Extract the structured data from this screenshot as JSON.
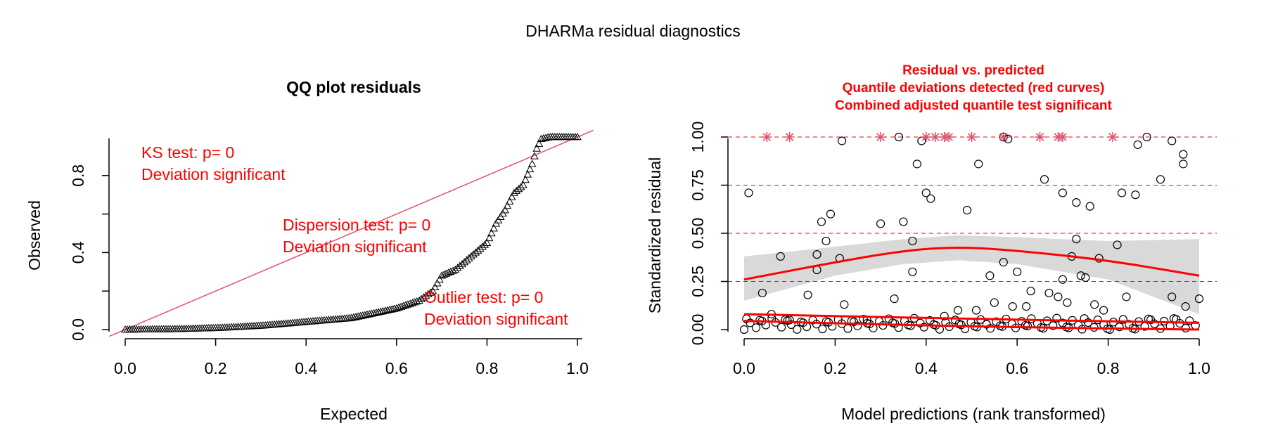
{
  "page": {
    "title": "DHARMa residual diagnostics"
  },
  "colors": {
    "red": "#ff0000",
    "qq_line": "#df536b",
    "outlier_star": "#df536b",
    "dashed": "#ff0000",
    "band": "#d9d9d9",
    "points": "#000000"
  },
  "qq": {
    "annotations": {
      "ks_line1": "KS test: p= 0",
      "ks_line2": "Deviation  significant",
      "disp_line1": "Dispersion test: p= 0",
      "disp_line2": "Deviation  significant",
      "out_line1": "Outlier test: p= 0",
      "out_line2": "Deviation  significant"
    }
  },
  "rvp": {
    "title_lines": [
      "Residual vs. predicted",
      "Quantile deviations detected (red curves)",
      "Combined adjusted quantile test significant"
    ]
  },
  "chart_data": [
    {
      "type": "scatter",
      "title": "QQ plot residuals",
      "xlabel": "Expected",
      "ylabel": "Observed",
      "xlim": [
        0,
        1
      ],
      "ylim": [
        0,
        1
      ],
      "xticks": [
        "0.0",
        "0.2",
        "0.4",
        "0.6",
        "0.8",
        "1.0"
      ],
      "yticks": [
        "0.0",
        "0.4",
        "0.8"
      ],
      "reference_line": {
        "intercept": 0,
        "slope": 1
      },
      "quantile_curve": [
        [
          0.0,
          0.0
        ],
        [
          0.1,
          0.002
        ],
        [
          0.2,
          0.008
        ],
        [
          0.3,
          0.02
        ],
        [
          0.4,
          0.04
        ],
        [
          0.5,
          0.06
        ],
        [
          0.55,
          0.085
        ],
        [
          0.6,
          0.11
        ],
        [
          0.65,
          0.15
        ],
        [
          0.68,
          0.2
        ],
        [
          0.7,
          0.28
        ],
        [
          0.73,
          0.31
        ],
        [
          0.76,
          0.37
        ],
        [
          0.8,
          0.45
        ],
        [
          0.82,
          0.55
        ],
        [
          0.84,
          0.62
        ],
        [
          0.86,
          0.71
        ],
        [
          0.88,
          0.75
        ],
        [
          0.9,
          0.86
        ],
        [
          0.91,
          0.94
        ],
        [
          0.92,
          0.99
        ],
        [
          0.94,
          1.0
        ],
        [
          1.0,
          1.0
        ]
      ]
    },
    {
      "type": "scatter",
      "title": "Residual vs. predicted",
      "xlabel": "Model predictions (rank transformed)",
      "ylabel": "Standardized residual",
      "xlim": [
        0,
        1
      ],
      "ylim": [
        0,
        1
      ],
      "xticks": [
        "0.0",
        "0.2",
        "0.4",
        "0.6",
        "0.8",
        "1.0"
      ],
      "yticks": [
        "0.00",
        "0.25",
        "0.50",
        "0.75",
        "1.00"
      ],
      "reference_quantiles": [
        0.25,
        0.5,
        0.75
      ],
      "outliers_x": [
        0.05,
        0.1,
        0.3,
        0.4,
        0.42,
        0.44,
        0.45,
        0.5,
        0.57,
        0.65,
        0.69,
        0.7,
        0.81
      ],
      "points": [
        [
          0.01,
          0.71
        ],
        [
          0.215,
          0.98
        ],
        [
          0.34,
          1.0
        ],
        [
          0.38,
          0.86
        ],
        [
          0.39,
          0.98
        ],
        [
          0.515,
          0.86
        ],
        [
          0.57,
          1.0
        ],
        [
          0.58,
          0.99
        ],
        [
          0.865,
          0.96
        ],
        [
          0.885,
          1.0
        ],
        [
          0.94,
          0.98
        ],
        [
          0.965,
          0.91
        ],
        [
          0.965,
          0.86
        ],
        [
          0.915,
          0.78
        ],
        [
          0.66,
          0.78
        ],
        [
          0.4,
          0.71
        ],
        [
          0.41,
          0.68
        ],
        [
          0.7,
          0.71
        ],
        [
          0.73,
          0.66
        ],
        [
          0.76,
          0.64
        ],
        [
          0.83,
          0.71
        ],
        [
          0.86,
          0.7
        ],
        [
          0.19,
          0.6
        ],
        [
          0.17,
          0.56
        ],
        [
          0.3,
          0.55
        ],
        [
          0.35,
          0.56
        ],
        [
          0.49,
          0.62
        ],
        [
          0.18,
          0.46
        ],
        [
          0.37,
          0.46
        ],
        [
          0.08,
          0.38
        ],
        [
          0.16,
          0.39
        ],
        [
          0.21,
          0.37
        ],
        [
          0.57,
          0.35
        ],
        [
          0.73,
          0.47
        ],
        [
          0.82,
          0.44
        ],
        [
          0.72,
          0.38
        ],
        [
          0.78,
          0.37
        ],
        [
          0.16,
          0.31
        ],
        [
          0.37,
          0.3
        ],
        [
          0.54,
          0.28
        ],
        [
          0.6,
          0.3
        ],
        [
          0.7,
          0.26
        ],
        [
          0.74,
          0.28
        ],
        [
          0.75,
          0.27
        ],
        [
          0.04,
          0.19
        ],
        [
          0.14,
          0.18
        ],
        [
          0.22,
          0.13
        ],
        [
          0.33,
          0.16
        ],
        [
          0.63,
          0.2
        ],
        [
          0.67,
          0.19
        ],
        [
          0.69,
          0.17
        ],
        [
          0.71,
          0.14
        ],
        [
          0.77,
          0.13
        ],
        [
          0.79,
          0.1
        ],
        [
          0.84,
          0.17
        ],
        [
          0.94,
          0.17
        ],
        [
          0.97,
          0.12
        ],
        [
          1.0,
          0.16
        ],
        [
          0.06,
          0.08
        ],
        [
          0.1,
          0.05
        ],
        [
          0.27,
          0.05
        ],
        [
          0.44,
          0.07
        ],
        [
          0.47,
          0.1
        ],
        [
          0.51,
          0.1
        ],
        [
          0.55,
          0.14
        ],
        [
          0.59,
          0.12
        ],
        [
          0.62,
          0.12
        ]
      ],
      "quantile_curves": [
        {
          "q": 0.5,
          "points": [
            [
              0,
              0.26
            ],
            [
              0.2,
              0.35
            ],
            [
              0.35,
              0.41
            ],
            [
              0.47,
              0.43
            ],
            [
              0.6,
              0.41
            ],
            [
              0.8,
              0.36
            ],
            [
              1.0,
              0.28
            ]
          ]
        },
        {
          "q": 0.25,
          "points": [
            [
              0,
              0.08
            ],
            [
              0.5,
              0.055
            ],
            [
              1.0,
              0.035
            ]
          ]
        },
        {
          "q": 0.75,
          "points": [
            [
              0,
              0.045
            ],
            [
              0.5,
              0.015
            ],
            [
              1.0,
              0.0
            ]
          ]
        }
      ],
      "band": {
        "upper": [
          [
            0,
            0.38
          ],
          [
            0.2,
            0.43
          ],
          [
            0.35,
            0.47
          ],
          [
            0.47,
            0.49
          ],
          [
            0.6,
            0.48
          ],
          [
            0.8,
            0.46
          ],
          [
            1.0,
            0.47
          ]
        ],
        "lower": [
          [
            0,
            0.15
          ],
          [
            0.2,
            0.28
          ],
          [
            0.35,
            0.34
          ],
          [
            0.47,
            0.36
          ],
          [
            0.6,
            0.34
          ],
          [
            0.8,
            0.26
          ],
          [
            1.0,
            0.08
          ]
        ]
      }
    }
  ]
}
